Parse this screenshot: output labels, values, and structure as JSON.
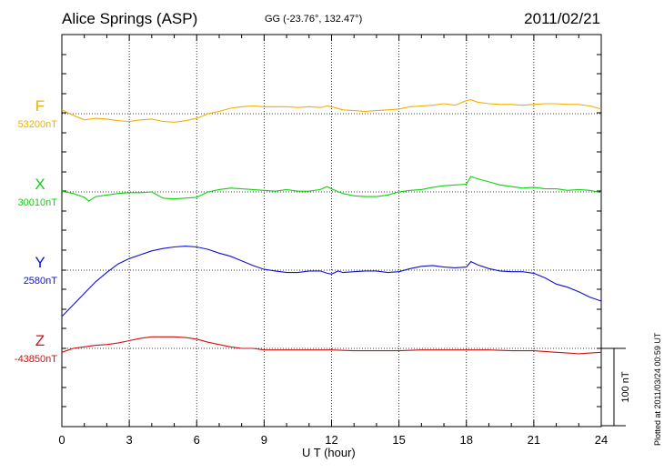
{
  "header": {
    "station": "Alice Springs (ASP)",
    "coords": "GG (-23.76°, 132.47°)",
    "date": "2011/02/21"
  },
  "footer": {
    "plotted": "Plotted at 2011/03/24 00:59 UT"
  },
  "chart_data": {
    "type": "line",
    "title": "Alice Springs (ASP)",
    "xlabel": "U T (hour)",
    "xlim": [
      0,
      24
    ],
    "xticks": [
      "0",
      "3",
      "6",
      "9",
      "12",
      "15",
      "18",
      "21",
      "24"
    ],
    "scale_bar": {
      "label": "100 nT",
      "value_nT": 100
    },
    "grid": true,
    "series": [
      {
        "name": "F",
        "baseline_label": "53200nT",
        "color": "#f0b000",
        "x": [
          0,
          0.5,
          1,
          1.5,
          2,
          2.5,
          3,
          3.5,
          4,
          4.5,
          5,
          5.5,
          6,
          6.5,
          7,
          7.5,
          8,
          8.5,
          9,
          9.5,
          10,
          10.5,
          11,
          11.5,
          11.8,
          12,
          12.5,
          13,
          13.5,
          14,
          14.5,
          15,
          15.5,
          16,
          16.5,
          17,
          17.5,
          18,
          18.2,
          18.5,
          19,
          19.5,
          20,
          20.5,
          21,
          21.5,
          22,
          22.5,
          23,
          23.5,
          24
        ],
        "y": [
          5,
          -2,
          -8,
          -6,
          -7,
          -9,
          -10,
          -8,
          -7,
          -10,
          -11,
          -9,
          -6,
          0,
          3,
          7,
          9,
          10,
          9,
          9,
          9,
          8,
          9,
          8,
          10,
          9,
          5,
          4,
          3,
          4,
          5,
          6,
          9,
          10,
          11,
          13,
          11,
          17,
          18,
          15,
          13,
          12,
          12,
          11,
          12,
          13,
          13,
          12,
          12,
          10,
          6
        ]
      },
      {
        "name": "X",
        "baseline_label": "30010nT",
        "color": "#10d010",
        "x": [
          0,
          0.5,
          1,
          1.2,
          1.5,
          2,
          2.5,
          3,
          3.5,
          4,
          4.5,
          5,
          5.5,
          6,
          6.5,
          7,
          7.5,
          8,
          8.5,
          9,
          9.5,
          10,
          10.5,
          11,
          11.5,
          11.8,
          12,
          12.5,
          13,
          13.5,
          14,
          14.5,
          15,
          15.5,
          16,
          16.5,
          17,
          17.5,
          18,
          18.2,
          18.5,
          19,
          19.5,
          20,
          20.5,
          21,
          21.5,
          22,
          22.5,
          23,
          23.5,
          24
        ],
        "y": [
          1,
          -2,
          -7,
          -12,
          -6,
          -4,
          -2,
          -1,
          -1,
          0,
          -8,
          -9,
          -8,
          -7,
          0,
          3,
          5,
          4,
          3,
          2,
          1,
          3,
          1,
          1,
          3,
          7,
          4,
          -2,
          -5,
          -6,
          -6,
          -4,
          0,
          2,
          3,
          6,
          8,
          9,
          10,
          20,
          17,
          13,
          9,
          7,
          5,
          6,
          4,
          4,
          2,
          3,
          2,
          -1
        ]
      },
      {
        "name": "Y",
        "baseline_label": "2580nT",
        "color": "#1010d0",
        "x": [
          0,
          0.5,
          1,
          1.5,
          2,
          2.5,
          3,
          3.5,
          4,
          4.5,
          5,
          5.5,
          6,
          6.5,
          7,
          7.5,
          8,
          8.5,
          9,
          9.5,
          10,
          10.5,
          11,
          11.5,
          11.8,
          12,
          12.3,
          12.5,
          13,
          13.5,
          14,
          14.5,
          15,
          15.5,
          16,
          16.5,
          17,
          17.5,
          18,
          18.2,
          18.5,
          19,
          19.5,
          20,
          20.5,
          21,
          21.5,
          22,
          22.5,
          23,
          23.5,
          24
        ],
        "y": [
          -60,
          -45,
          -30,
          -15,
          -3,
          8,
          15,
          20,
          25,
          28,
          30,
          31,
          30,
          27,
          22,
          18,
          12,
          6,
          1,
          -1,
          -3,
          -3,
          -1,
          -1,
          -4,
          -5,
          -1,
          -3,
          -2,
          -1,
          -1,
          -3,
          -2,
          2,
          5,
          6,
          4,
          3,
          4,
          11,
          7,
          2,
          -1,
          -2,
          -2,
          -4,
          -10,
          -18,
          -22,
          -28,
          -35,
          -40
        ]
      },
      {
        "name": "Z",
        "baseline_label": "-43850nT",
        "color": "#d01010",
        "x": [
          0,
          0.5,
          1,
          1.5,
          2,
          2.5,
          3,
          3.5,
          4,
          4.5,
          5,
          5.5,
          6,
          6.5,
          7,
          7.5,
          8,
          8.5,
          9,
          9.5,
          10,
          11,
          12,
          13,
          14,
          15,
          16,
          17,
          18,
          19,
          20,
          21,
          22,
          22.5,
          23,
          23.5,
          24
        ],
        "y": [
          -5,
          0,
          2,
          4,
          5,
          7,
          10,
          13,
          15,
          15,
          15,
          14,
          12,
          8,
          5,
          2,
          0,
          0,
          -2,
          -2,
          -2,
          -2,
          -2,
          -3,
          -3,
          -3,
          -2,
          -2,
          -2,
          -2,
          -3,
          -3,
          -5,
          -6,
          -7,
          -6,
          -5
        ]
      }
    ]
  }
}
